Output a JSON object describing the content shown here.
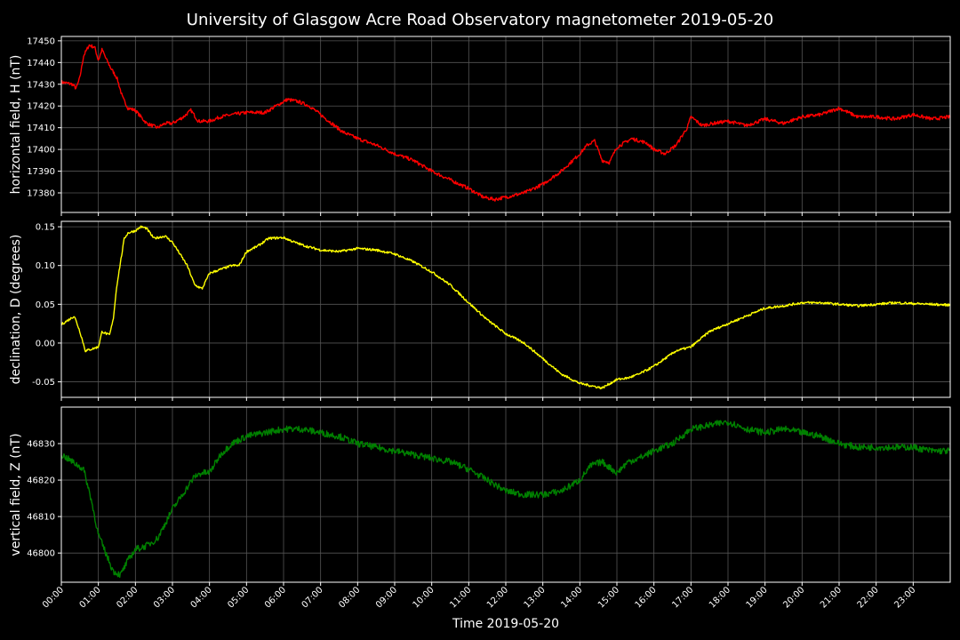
{
  "chart_data": {
    "type": "line",
    "title": "University of Glasgow Acre Road Observatory magnetometer 2019-05-20",
    "xlabel": "Time 2019-05-20",
    "x_ticks": [
      "00:00",
      "01:00",
      "02:00",
      "03:00",
      "04:00",
      "05:00",
      "06:00",
      "07:00",
      "08:00",
      "09:00",
      "10:00",
      "11:00",
      "12:00",
      "13:00",
      "14:00",
      "15:00",
      "16:00",
      "17:00",
      "18:00",
      "19:00",
      "20:00",
      "21:00",
      "22:00",
      "23:00"
    ],
    "xlim": [
      0,
      24
    ],
    "grid": true,
    "panels": [
      {
        "ylabel": "horizontal field, H (nT)",
        "color": "#ff0000",
        "ylim": [
          17371,
          17452
        ],
        "yticks": [
          17380,
          17390,
          17400,
          17410,
          17420,
          17430,
          17440,
          17450
        ],
        "noise": 0.8,
        "x": [
          0,
          0.3,
          0.4,
          0.5,
          0.6,
          0.75,
          0.9,
          1.0,
          1.1,
          1.2,
          1.35,
          1.5,
          1.65,
          1.8,
          2.0,
          2.3,
          2.6,
          2.8,
          3.0,
          3.3,
          3.5,
          3.7,
          4.0,
          4.3,
          4.6,
          5.0,
          5.5,
          5.8,
          6.1,
          6.4,
          6.7,
          7.0,
          7.3,
          7.6,
          8.0,
          8.5,
          9.0,
          9.5,
          10.0,
          10.5,
          11.0,
          11.4,
          11.7,
          12.0,
          12.5,
          13.0,
          13.5,
          14.0,
          14.2,
          14.4,
          14.6,
          14.8,
          15.0,
          15.4,
          15.8,
          16.0,
          16.3,
          16.6,
          16.9,
          17.0,
          17.3,
          17.6,
          18.0,
          18.5,
          19.0,
          19.5,
          20.0,
          20.5,
          21.0,
          21.5,
          22.0,
          22.5,
          23.0,
          23.5,
          24.0
        ],
        "y": [
          17431,
          17430,
          17428,
          17433,
          17443,
          17448,
          17447,
          17441,
          17446,
          17442,
          17437,
          17433,
          17424,
          17419,
          17418,
          17412,
          17410,
          17412,
          17412,
          17415,
          17418,
          17413,
          17413,
          17415,
          17416,
          17417,
          17417,
          17420,
          17423,
          17422,
          17420,
          17416,
          17412,
          17408,
          17405,
          17402,
          17398,
          17395,
          17390,
          17386,
          17382,
          17378,
          17377,
          17378,
          17380,
          17384,
          17390,
          17398,
          17402,
          17404,
          17395,
          17394,
          17401,
          17405,
          17403,
          17400,
          17398,
          17402,
          17410,
          17415,
          17411,
          17412,
          17413,
          17411,
          17414,
          17412,
          17415,
          17416,
          17419,
          17415,
          17415,
          17414,
          17416,
          17414,
          17415
        ]
      },
      {
        "ylabel": "declination, D (degrees)",
        "color": "#ffff00",
        "ylim": [
          -0.07,
          0.157
        ],
        "yticks": [
          -0.05,
          0.0,
          0.05,
          0.1,
          0.15
        ],
        "noise": 0.0015,
        "x": [
          0,
          0.2,
          0.35,
          0.5,
          0.65,
          0.8,
          1.0,
          1.1,
          1.3,
          1.4,
          1.5,
          1.7,
          1.8,
          2.0,
          2.15,
          2.3,
          2.5,
          2.8,
          3.0,
          3.2,
          3.4,
          3.6,
          3.8,
          4.0,
          4.3,
          4.6,
          4.8,
          5.0,
          5.3,
          5.6,
          6.0,
          6.3,
          6.6,
          7.0,
          7.5,
          8.0,
          8.5,
          9.0,
          9.5,
          10.0,
          10.5,
          11.0,
          11.5,
          12.0,
          12.5,
          13.0,
          13.5,
          14.0,
          14.3,
          14.6,
          15.0,
          15.3,
          15.6,
          16.0,
          16.3,
          16.6,
          17.0,
          17.5,
          18.0,
          18.5,
          19.0,
          19.5,
          20.0,
          20.5,
          21.0,
          21.5,
          22.0,
          22.5,
          23.0,
          23.5,
          24.0
        ],
        "y": [
          0.024,
          0.03,
          0.035,
          0.015,
          -0.01,
          -0.008,
          -0.005,
          0.015,
          0.01,
          0.03,
          0.075,
          0.135,
          0.142,
          0.145,
          0.15,
          0.148,
          0.135,
          0.138,
          0.13,
          0.115,
          0.1,
          0.075,
          0.07,
          0.09,
          0.095,
          0.1,
          0.1,
          0.118,
          0.125,
          0.135,
          0.136,
          0.13,
          0.125,
          0.12,
          0.118,
          0.122,
          0.12,
          0.115,
          0.105,
          0.092,
          0.075,
          0.052,
          0.03,
          0.012,
          0.0,
          -0.02,
          -0.04,
          -0.052,
          -0.055,
          -0.058,
          -0.047,
          -0.045,
          -0.04,
          -0.03,
          -0.02,
          -0.01,
          -0.005,
          0.015,
          0.025,
          0.035,
          0.045,
          0.048,
          0.052,
          0.052,
          0.05,
          0.048,
          0.05,
          0.052,
          0.051,
          0.05,
          0.049
        ]
      },
      {
        "ylabel": "vertical field, Z (nT)",
        "color": "#008000",
        "ylim": [
          46792,
          46840
        ],
        "yticks": [
          46800,
          46810,
          46820,
          46830
        ],
        "noise": 0.9,
        "x": [
          0,
          0.3,
          0.6,
          0.8,
          1.0,
          1.2,
          1.4,
          1.6,
          1.8,
          2.0,
          2.3,
          2.6,
          2.8,
          3.0,
          3.2,
          3.4,
          3.6,
          3.8,
          4.0,
          4.3,
          4.6,
          5.0,
          5.5,
          6.0,
          6.5,
          7.0,
          7.5,
          8.0,
          8.5,
          9.0,
          9.5,
          10.0,
          10.5,
          11.0,
          11.5,
          12.0,
          12.5,
          13.0,
          13.5,
          14.0,
          14.3,
          14.6,
          15.0,
          15.3,
          15.6,
          16.0,
          16.5,
          17.0,
          17.5,
          18.0,
          18.5,
          19.0,
          19.5,
          20.0,
          20.5,
          21.0,
          21.5,
          22.0,
          22.5,
          23.0,
          23.5,
          24.0
        ],
        "y": [
          46827,
          46825,
          46823,
          46815,
          46805,
          46800,
          46795,
          46794,
          46798,
          46801,
          46802,
          46804,
          46808,
          46812,
          46815,
          46818,
          46821,
          46822,
          46822,
          46827,
          46830,
          46832,
          46833,
          46834,
          46834,
          46833,
          46832,
          46830,
          46829,
          46828,
          46827,
          46826,
          46825,
          46823,
          46820,
          46817,
          46816,
          46816,
          46817,
          46820,
          46824,
          46825,
          46822,
          46825,
          46826,
          46828,
          46830,
          46834,
          46835,
          46836,
          46834,
          46833,
          46834,
          46833,
          46832,
          46830,
          46829,
          46829,
          46829,
          46829,
          46828,
          46828
        ]
      }
    ]
  }
}
